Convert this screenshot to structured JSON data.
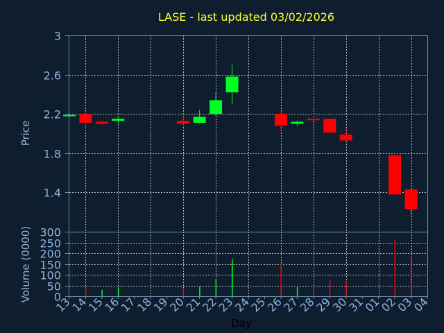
{
  "chart_data": [
    {
      "type": "candlestick",
      "title": "LASE - last updated 03/02/2026",
      "ylabel": "Price",
      "ylim": [
        1.0,
        3.0
      ],
      "yticks": [
        "3",
        "2.6",
        "2.2",
        "1.8",
        "1.4"
      ],
      "yticks_values": [
        3,
        2.6,
        2.2,
        1.8,
        1.4
      ],
      "grid": true,
      "up_color": "#00ff22",
      "down_color": "#ff0000",
      "x": [
        "13",
        "14",
        "15",
        "16",
        "17",
        "18",
        "19",
        "20",
        "21",
        "22",
        "23",
        "24",
        "25",
        "26",
        "27",
        "28",
        "29",
        "30",
        "31",
        "01",
        "02",
        "03",
        "04"
      ],
      "series": [
        {
          "x": "13",
          "open": 2.18,
          "high": 2.19,
          "low": 2.17,
          "close": 2.19
        },
        {
          "x": "14",
          "open": 2.2,
          "high": 2.2,
          "low": 2.06,
          "close": 2.11
        },
        {
          "x": "15",
          "open": 2.12,
          "high": 2.13,
          "low": 2.09,
          "close": 2.1
        },
        {
          "x": "16",
          "open": 2.13,
          "high": 2.18,
          "low": 2.1,
          "close": 2.15
        },
        {
          "x": "20",
          "open": 2.13,
          "high": 2.2,
          "low": 2.08,
          "close": 2.1
        },
        {
          "x": "21",
          "open": 2.11,
          "high": 2.24,
          "low": 2.1,
          "close": 2.17
        },
        {
          "x": "22",
          "open": 2.2,
          "high": 2.42,
          "low": 2.18,
          "close": 2.34
        },
        {
          "x": "23",
          "open": 2.42,
          "high": 2.7,
          "low": 2.3,
          "close": 2.58
        },
        {
          "x": "26",
          "open": 2.2,
          "high": 2.22,
          "low": 2.03,
          "close": 2.08
        },
        {
          "x": "27",
          "open": 2.1,
          "high": 2.13,
          "low": 2.08,
          "close": 2.12
        },
        {
          "x": "28",
          "open": 2.15,
          "high": 2.15,
          "low": 2.03,
          "close": 2.14
        },
        {
          "x": "29",
          "open": 2.15,
          "high": 2.15,
          "low": 2.0,
          "close": 2.01
        },
        {
          "x": "30",
          "open": 1.99,
          "high": 2.06,
          "low": 1.91,
          "close": 1.93
        },
        {
          "x": "02",
          "open": 1.78,
          "high": 1.78,
          "low": 1.37,
          "close": 1.38
        },
        {
          "x": "03",
          "open": 1.43,
          "high": 1.43,
          "low": 1.15,
          "close": 1.23
        }
      ]
    },
    {
      "type": "bar",
      "title": "",
      "xlabel": "Day",
      "ylabel": "Volume (0000)",
      "ylim": [
        0,
        300
      ],
      "yticks": [
        "0",
        "50",
        "100",
        "150",
        "200",
        "250",
        "300"
      ],
      "yticks_values": [
        0,
        50,
        100,
        150,
        200,
        250,
        300
      ],
      "grid": true,
      "categories": [
        "13",
        "14",
        "15",
        "16",
        "17",
        "18",
        "19",
        "20",
        "21",
        "22",
        "23",
        "24",
        "25",
        "26",
        "27",
        "28",
        "29",
        "30",
        "31",
        "01",
        "02",
        "03",
        "04"
      ],
      "values": [
        0,
        40,
        30,
        38,
        0,
        0,
        0,
        38,
        45,
        80,
        172,
        0,
        0,
        148,
        42,
        50,
        75,
        70,
        0,
        0,
        262,
        185,
        0
      ],
      "colors": [
        "",
        "#ff0000",
        "#00ff22",
        "#00ff22",
        "",
        "",
        "",
        "#ff0000",
        "#00ff22",
        "#00ff22",
        "#00ff22",
        "",
        "",
        "#ff0000",
        "#00ff22",
        "#ff0000",
        "#ff0000",
        "#ff0000",
        "",
        "",
        "#ff0000",
        "#ff0000",
        ""
      ]
    }
  ]
}
